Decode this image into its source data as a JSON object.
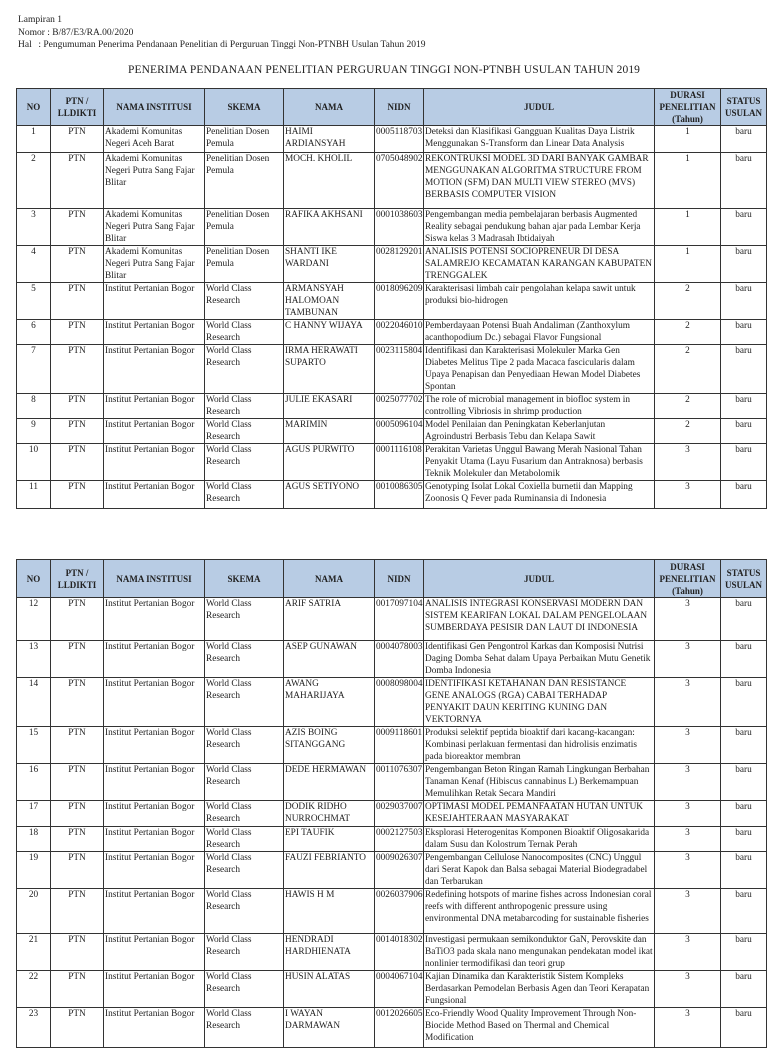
{
  "header": {
    "lampiran": "Lampiran 1",
    "nomor": "Nomor : B/87/E3/RA.00/2020",
    "hal_label": "Hal",
    "hal_value": ": Pengumuman Penerima Pendanaan Penelitian di Perguruan Tinggi Non-PTNBH Usulan Tahun 2019"
  },
  "title": "PENERIMA PENDANAAN PENELITIAN PERGURUAN TINGGI NON-PTNBH USULAN TAHUN 2019",
  "columns": [
    "NO",
    "PTN / LLDIKTI",
    "NAMA INSTITUSI",
    "SKEMA",
    "NAMA",
    "NIDN",
    "JUDUL",
    "DURASI PENELITIAN (Tahun)",
    "STATUS USULAN"
  ],
  "table1": [
    [
      "1",
      "PTN",
      "Akademi Komunitas Negeri Aceh Barat",
      "Penelitian Dosen Pemula",
      "HAIMI ARDIANSYAH",
      "0005118703",
      "Deteksi dan Klasifikasi Gangguan Kualitas Daya Listrik Menggunakan S-Transform dan Linear Data Analysis",
      "1",
      "baru"
    ],
    [
      "2",
      "PTN",
      "Akademi Komunitas Negeri Putra Sang Fajar Blitar",
      "Penelitian Dosen Pemula",
      "MOCH. KHOLIL",
      "0705048902",
      "REKONTRUKSI MODEL 3D DARI BANYAK GAMBAR MENGGUNAKAN ALGORITMA STRUCTURE FROM MOTION (SFM) DAN MULTI VIEW STEREO (MVS) BERBASIS COMPUTER VISION",
      "1",
      "baru"
    ],
    [
      "3",
      "PTN",
      "Akademi Komunitas Negeri Putra Sang Fajar Blitar",
      "Penelitian Dosen Pemula",
      "RAFIKA AKHSANI",
      "0001038603",
      "Pengembangan media pembelajaran berbasis Augmented Reality sebagai pendukung bahan ajar pada Lembar Kerja Siswa kelas 3 Madrasah Ibtidaiyah",
      "1",
      "baru"
    ],
    [
      "4",
      "PTN",
      "Akademi Komunitas Negeri Putra Sang Fajar Blitar",
      "Penelitian Dosen Pemula",
      "SHANTI IKE WARDANI",
      "0028129201",
      "ANALISIS POTENSI SOCIOPRENEUR DI DESA SALAMREJO KECAMATAN KARANGAN KABUPATEN TRENGGALEK",
      "1",
      "baru"
    ],
    [
      "5",
      "PTN",
      "Institut Pertanian Bogor",
      "World Class Research",
      "ARMANSYAH HALOMOAN TAMBUNAN",
      "0018096209",
      "Karakterisasi limbah cair pengolahan kelapa sawit untuk produksi bio-hidrogen",
      "2",
      "baru"
    ],
    [
      "6",
      "PTN",
      "Institut Pertanian Bogor",
      "World Class Research",
      "C HANNY WIJAYA",
      "0022046010",
      "Pemberdayaan Potensi Buah Andaliman (Zanthoxylum acanthopodium Dc.) sebagai Flavor Fungsional",
      "2",
      "baru"
    ],
    [
      "7",
      "PTN",
      "Institut Pertanian Bogor",
      "World Class Research",
      "IRMA HERAWATI SUPARTO",
      "0023115804",
      "Identifikasi dan Karakterisasi Molekuler Marka Gen Diabetes Melitus Tipe 2 pada Macaca fascicularis dalam Upaya Penapisan dan Penyediaan Hewan Model Diabetes Spontan",
      "2",
      "baru"
    ],
    [
      "8",
      "PTN",
      "Institut Pertanian Bogor",
      "World Class Research",
      "JULIE EKASARI",
      "0025077702",
      "The role of microbial management in biofloc system in controlling Vibriosis in shrimp production",
      "2",
      "baru"
    ],
    [
      "9",
      "PTN",
      "Institut Pertanian Bogor",
      "World Class Research",
      "MARIMIN",
      "0005096104",
      "Model Penilaian dan Peningkatan Keberlanjutan Agroindustri Berbasis Tebu dan Kelapa Sawit",
      "2",
      "baru"
    ],
    [
      "10",
      "PTN",
      "Institut Pertanian Bogor",
      "World Class Research",
      "AGUS PURWITO",
      "0001116108",
      "Perakitan Varietas Unggul Bawang Merah Nasional Tahan Penyakit Utama (Layu Fusarium dan Antraknosa) berbasis Teknik Molekuler dan Metabolomik",
      "3",
      "baru"
    ],
    [
      "11",
      "PTN",
      "Institut Pertanian Bogor",
      "World Class Research",
      "AGUS SETIYONO",
      "0010086305",
      "Genotyping Isolat Lokal Coxiella burnetii dan Mapping Zoonosis Q Fever pada Ruminansia di Indonesia",
      "3",
      "baru"
    ]
  ],
  "table2": [
    [
      "12",
      "PTN",
      "Institut Pertanian Bogor",
      "World Class Research",
      "ARIF SATRIA",
      "0017097104",
      "ANALISIS INTEGRASI KONSERVASI MODERN DAN SISTEM KEARIFAN LOKAL DALAM PENGELOLAAN SUMBERDAYA PESISIR DAN LAUT DI INDONESIA",
      "3",
      "baru"
    ],
    [
      "13",
      "PTN",
      "Institut Pertanian Bogor",
      "World Class Research",
      "ASEP GUNAWAN",
      "0004078003",
      "Identifikasi Gen Pengontrol Karkas dan Komposisi Nutrisi Daging Domba Sehat dalam Upaya Perbaikan Mutu Genetik Domba Indonesia",
      "3",
      "baru"
    ],
    [
      "14",
      "PTN",
      "Institut Pertanian Bogor",
      "World Class Research",
      "AWANG MAHARIJAYA",
      "0008098004",
      "IDENTIFIKASI KETAHANAN DAN RESISTANCE GENE ANALOGS (RGA) CABAI TERHADAP PENYAKIT DAUN KERITING KUNING DAN VEKTORNYA",
      "3",
      "baru"
    ],
    [
      "15",
      "PTN",
      "Institut Pertanian Bogor",
      "World Class Research",
      "AZIS BOING SITANGGANG",
      "0009118601",
      "Produksi selektif peptida bioaktif dari kacang-kacangan: Kombinasi perlakuan fermentasi dan hidrolisis enzimatis pada bioreaktor membran",
      "3",
      "baru"
    ],
    [
      "16",
      "PTN",
      "Institut Pertanian Bogor",
      "World Class Research",
      "DEDE HERMAWAN",
      "0011076307",
      "Pengembangan Beton Ringan Ramah Lingkungan Berbahan Tanaman Kenaf (Hibiscus cannabinus L) Berkemampuan Memulihkan Retak Secara Mandiri",
      "3",
      "baru"
    ],
    [
      "17",
      "PTN",
      "Institut Pertanian Bogor",
      "World Class Research",
      "DODIK RIDHO NURROCHMAT",
      "0029037007",
      "OPTIMASI MODEL PEMANFAATAN HUTAN UNTUK KESEJAHTERAAN MASYARAKAT",
      "3",
      "baru"
    ],
    [
      "18",
      "PTN",
      "Institut Pertanian Bogor",
      "World Class Research",
      "EPI TAUFIK",
      "0002127503",
      "Eksplorasi Heterogenitas Komponen Bioaktif Oligosakarida dalam Susu dan Kolostrum Ternak Perah",
      "3",
      "baru"
    ],
    [
      "19",
      "PTN",
      "Institut Pertanian Bogor",
      "World Class Research",
      "FAUZI FEBRIANTO",
      "0009026307",
      "Pengembangan Cellulose Nanocomposites (CNC) Unggul dari Serat Kapok dan Balsa sebagai Material Biodegradabel dan Terbarukan",
      "3",
      "baru"
    ],
    [
      "20",
      "PTN",
      "Institut Pertanian Bogor",
      "World Class Research",
      "HAWIS H M",
      "0026037906",
      "Redefining hotspots of marine fishes across Indonesian coral reefs with different anthropogenic pressure using environmental DNA metabarcoding for sustainable fisheries",
      "3",
      "baru"
    ],
    [
      "21",
      "PTN",
      "Institut Pertanian Bogor",
      "World Class Research",
      "HENDRADI HARDHIENATA",
      "0014018302",
      "Investigasi permukaan semikonduktor GaN, Perovskite dan BaTiO3 pada skala nano mengunakan pendekatan model ikat nonlinier termodifikasi dan teori grup",
      "3",
      "baru"
    ],
    [
      "22",
      "PTN",
      "Institut Pertanian Bogor",
      "World Class Research",
      "HUSIN ALATAS",
      "0004067104",
      "Kajian Dinamika dan Karakteristik Sistem Kompleks Berdasarkan Pemodelan Berbasis Agen dan Teori Kerapatan Fungsional",
      "3",
      "baru"
    ],
    [
      "23",
      "PTN",
      "Institut Pertanian Bogor",
      "World Class Research",
      "I WAYAN DARMAWAN",
      "0012026605",
      "Eco-Friendly Wood Quality Improvement Through Non-Biocide Method Based on Thermal and Chemical Modification",
      "3",
      "baru"
    ]
  ]
}
